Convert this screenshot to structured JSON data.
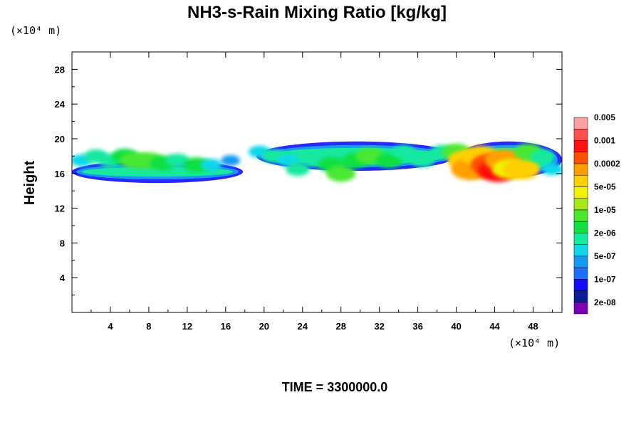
{
  "chart_data": {
    "type": "heatmap",
    "title": "NH3-s-Rain Mixing Ratio [kg/kg]",
    "xlabel": "",
    "ylabel": "Height",
    "x_unit": "(×10⁴ m)",
    "y_unit": "(×10⁴ m)",
    "xlim": [
      0,
      51
    ],
    "ylim": [
      0,
      30
    ],
    "x_ticks": [
      "4",
      "8",
      "12",
      "16",
      "20",
      "24",
      "28",
      "32",
      "36",
      "40",
      "44",
      "48"
    ],
    "y_ticks": [
      "4",
      "8",
      "12",
      "16",
      "20",
      "24",
      "28"
    ],
    "colorbar": {
      "labels": [
        "2e-08",
        "1e-07",
        "5e-07",
        "2e-06",
        "1e-05",
        "5e-05",
        "0.0002",
        "0.001",
        "0.005"
      ],
      "colors": [
        "#7a00b8",
        "#0c1c96",
        "#1010ff",
        "#1c6cff",
        "#1898f0",
        "#10d8e8",
        "#18e8a0",
        "#10e040",
        "#48e830",
        "#a8e818",
        "#f0f000",
        "#ffd000",
        "#ffa000",
        "#ff5000",
        "#ff1010",
        "#ff5050",
        "#ffa0a0"
      ]
    },
    "cells": [
      {
        "x": 1.0,
        "y": 17.5,
        "level": 5
      },
      {
        "x": 2.5,
        "y": 18.0,
        "level": 6
      },
      {
        "x": 4.0,
        "y": 17.5,
        "level": 6
      },
      {
        "x": 5.5,
        "y": 18.0,
        "level": 7
      },
      {
        "x": 6.5,
        "y": 17.5,
        "level": 8
      },
      {
        "x": 8.0,
        "y": 17.5,
        "level": 8
      },
      {
        "x": 9.5,
        "y": 17.2,
        "level": 7
      },
      {
        "x": 11.0,
        "y": 17.5,
        "level": 6
      },
      {
        "x": 13.0,
        "y": 17.0,
        "level": 7
      },
      {
        "x": 14.5,
        "y": 17.0,
        "level": 5
      },
      {
        "x": 16.5,
        "y": 17.5,
        "level": 4
      },
      {
        "x": 19.5,
        "y": 18.5,
        "level": 5
      },
      {
        "x": 21.0,
        "y": 18.0,
        "level": 6
      },
      {
        "x": 22.5,
        "y": 17.5,
        "level": 5
      },
      {
        "x": 23.5,
        "y": 16.5,
        "level": 6
      },
      {
        "x": 25.5,
        "y": 17.5,
        "level": 6
      },
      {
        "x": 27.0,
        "y": 17.0,
        "level": 7
      },
      {
        "x": 28.0,
        "y": 16.0,
        "level": 8
      },
      {
        "x": 29.5,
        "y": 17.5,
        "level": 7
      },
      {
        "x": 31.0,
        "y": 18.0,
        "level": 8
      },
      {
        "x": 33.0,
        "y": 17.5,
        "level": 7
      },
      {
        "x": 34.5,
        "y": 18.5,
        "level": 6
      },
      {
        "x": 36.5,
        "y": 17.5,
        "level": 6
      },
      {
        "x": 38.5,
        "y": 18.5,
        "level": 6
      },
      {
        "x": 40.0,
        "y": 18.5,
        "level": 8
      },
      {
        "x": 41.0,
        "y": 17.5,
        "level": 11
      },
      {
        "x": 41.5,
        "y": 16.5,
        "level": 12
      },
      {
        "x": 42.5,
        "y": 18.0,
        "level": 11
      },
      {
        "x": 43.5,
        "y": 17.0,
        "level": 13
      },
      {
        "x": 44.3,
        "y": 16.3,
        "level": 14
      },
      {
        "x": 45.0,
        "y": 17.5,
        "level": 12
      },
      {
        "x": 45.5,
        "y": 16.5,
        "level": 10
      },
      {
        "x": 46.8,
        "y": 16.5,
        "level": 11
      },
      {
        "x": 47.5,
        "y": 18.5,
        "level": 8
      },
      {
        "x": 49.0,
        "y": 18.0,
        "level": 6
      },
      {
        "x": 50.0,
        "y": 16.5,
        "level": 5
      }
    ]
  },
  "footer": {
    "time_label": "TIME = 3300000.0"
  }
}
